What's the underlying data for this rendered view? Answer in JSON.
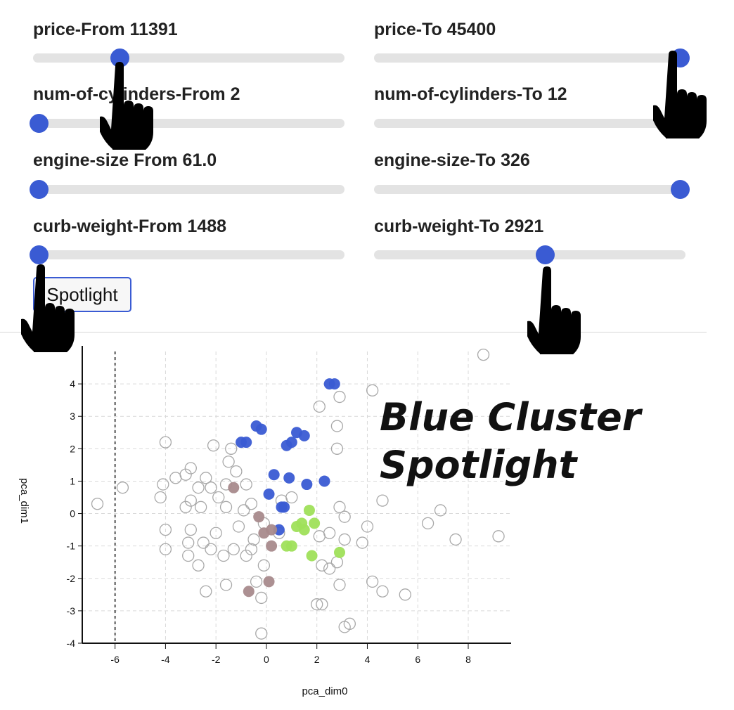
{
  "controls": {
    "sliders": [
      {
        "label": "price-From 11391",
        "value": 0.27
      },
      {
        "label": "price-To 45400",
        "value": 1.0
      },
      {
        "label": "num-of-cylinders-From 2",
        "value": 0.0
      },
      {
        "label": "num-of-cylinders-To 12",
        "value": 1.0
      },
      {
        "label": "engine-size From 61.0",
        "value": 0.0
      },
      {
        "label": "engine-size-To 326",
        "value": 1.0
      },
      {
        "label": "curb-weight-From 1488",
        "value": 0.0
      },
      {
        "label": "curb-weight-To 2921",
        "value": 0.55
      }
    ],
    "button_label": "Spotlight",
    "accent_color": "#3a5bd3"
  },
  "annotation": {
    "line1": "Blue Cluster",
    "line2": "Spotlight"
  },
  "icons": {
    "cursor": "hand-pointer-icon"
  },
  "chart_data": {
    "type": "scatter",
    "xlabel": "pca_dim0",
    "ylabel": "pca_dim1",
    "xlim": [
      -7.3,
      9.7
    ],
    "ylim": [
      -4,
      5
    ],
    "x_ticks": [
      -6,
      -4,
      -2,
      0,
      2,
      4,
      6,
      8
    ],
    "y_ticks": [
      -4,
      -3,
      -2,
      -1,
      0,
      1,
      2,
      3,
      4
    ],
    "grid": true,
    "reference_line_x": -6,
    "series": [
      {
        "color": "#3a5bd3",
        "filled": true,
        "points": [
          [
            2.5,
            4.0
          ],
          [
            2.7,
            4.0
          ],
          [
            -0.4,
            2.7
          ],
          [
            -0.2,
            2.6
          ],
          [
            -1.0,
            2.2
          ],
          [
            -0.8,
            2.2
          ],
          [
            1.2,
            2.5
          ],
          [
            1.5,
            2.4
          ],
          [
            0.8,
            2.1
          ],
          [
            1.0,
            2.2
          ],
          [
            0.3,
            1.2
          ],
          [
            0.9,
            1.1
          ],
          [
            1.6,
            0.9
          ],
          [
            2.3,
            1.0
          ],
          [
            0.1,
            0.6
          ],
          [
            0.6,
            0.2
          ],
          [
            0.7,
            0.2
          ],
          [
            0.5,
            -0.5
          ]
        ]
      },
      {
        "color": "#9fe05a",
        "filled": true,
        "points": [
          [
            1.7,
            0.1
          ],
          [
            1.4,
            -0.3
          ],
          [
            1.5,
            -0.5
          ],
          [
            1.9,
            -0.3
          ],
          [
            1.2,
            -0.4
          ],
          [
            0.8,
            -1.0
          ],
          [
            1.0,
            -1.0
          ],
          [
            1.8,
            -1.3
          ],
          [
            2.9,
            -1.2
          ]
        ]
      },
      {
        "color": "#a88a8c",
        "filled": true,
        "points": [
          [
            -1.3,
            0.8
          ],
          [
            -0.3,
            -0.1
          ],
          [
            -0.1,
            -0.6
          ],
          [
            0.2,
            -0.5
          ],
          [
            0.2,
            -1.0
          ],
          [
            -0.7,
            -2.4
          ],
          [
            0.1,
            -2.1
          ]
        ]
      },
      {
        "color": "#a8a8a8",
        "filled": false,
        "points": [
          [
            8.6,
            4.9
          ],
          [
            4.2,
            3.8
          ],
          [
            2.9,
            3.6
          ],
          [
            2.1,
            3.3
          ],
          [
            2.8,
            2.7
          ],
          [
            -4.0,
            2.2
          ],
          [
            2.8,
            2.0
          ],
          [
            -2.1,
            2.1
          ],
          [
            -1.4,
            2.0
          ],
          [
            -3.0,
            1.4
          ],
          [
            -3.2,
            1.2
          ],
          [
            -1.5,
            1.6
          ],
          [
            -1.2,
            1.3
          ],
          [
            -2.4,
            1.1
          ],
          [
            -3.6,
            1.1
          ],
          [
            -1.6,
            0.9
          ],
          [
            -0.8,
            0.9
          ],
          [
            -5.7,
            0.8
          ],
          [
            -4.1,
            0.9
          ],
          [
            -2.7,
            0.8
          ],
          [
            -2.2,
            0.8
          ],
          [
            -4.2,
            0.5
          ],
          [
            -3.0,
            0.4
          ],
          [
            -1.9,
            0.5
          ],
          [
            -3.2,
            0.2
          ],
          [
            -2.6,
            0.2
          ],
          [
            -1.6,
            0.2
          ],
          [
            -0.9,
            0.1
          ],
          [
            -6.7,
            0.3
          ],
          [
            -0.6,
            0.3
          ],
          [
            0.6,
            0.4
          ],
          [
            1.0,
            0.5
          ],
          [
            4.6,
            0.4
          ],
          [
            6.9,
            0.1
          ],
          [
            2.9,
            0.2
          ],
          [
            3.1,
            -0.1
          ],
          [
            6.4,
            -0.3
          ],
          [
            -4.0,
            -0.5
          ],
          [
            -3.0,
            -0.5
          ],
          [
            -2.0,
            -0.6
          ],
          [
            -1.1,
            -0.4
          ],
          [
            -0.5,
            -0.8
          ],
          [
            -0.1,
            -0.3
          ],
          [
            2.5,
            -0.6
          ],
          [
            4.0,
            -0.4
          ],
          [
            -4.0,
            -1.1
          ],
          [
            -3.1,
            -0.9
          ],
          [
            -2.5,
            -0.9
          ],
          [
            -2.2,
            -1.1
          ],
          [
            -1.3,
            -1.1
          ],
          [
            -0.6,
            -1.1
          ],
          [
            0.5,
            -0.6
          ],
          [
            2.1,
            -0.7
          ],
          [
            3.1,
            -0.8
          ],
          [
            3.8,
            -0.9
          ],
          [
            7.5,
            -0.8
          ],
          [
            9.2,
            -0.7
          ],
          [
            -3.1,
            -1.3
          ],
          [
            -2.7,
            -1.6
          ],
          [
            -1.7,
            -1.3
          ],
          [
            -0.8,
            -1.3
          ],
          [
            -0.1,
            -1.6
          ],
          [
            2.2,
            -1.6
          ],
          [
            2.5,
            -1.7
          ],
          [
            2.8,
            -1.5
          ],
          [
            -1.6,
            -2.2
          ],
          [
            -0.4,
            -2.1
          ],
          [
            4.2,
            -2.1
          ],
          [
            2.9,
            -2.2
          ],
          [
            -2.4,
            -2.4
          ],
          [
            -0.2,
            -2.6
          ],
          [
            4.6,
            -2.4
          ],
          [
            5.5,
            -2.5
          ],
          [
            2.0,
            -2.8
          ],
          [
            2.2,
            -2.8
          ],
          [
            3.3,
            -3.4
          ],
          [
            3.1,
            -3.5
          ],
          [
            -0.2,
            -3.7
          ]
        ]
      }
    ]
  }
}
